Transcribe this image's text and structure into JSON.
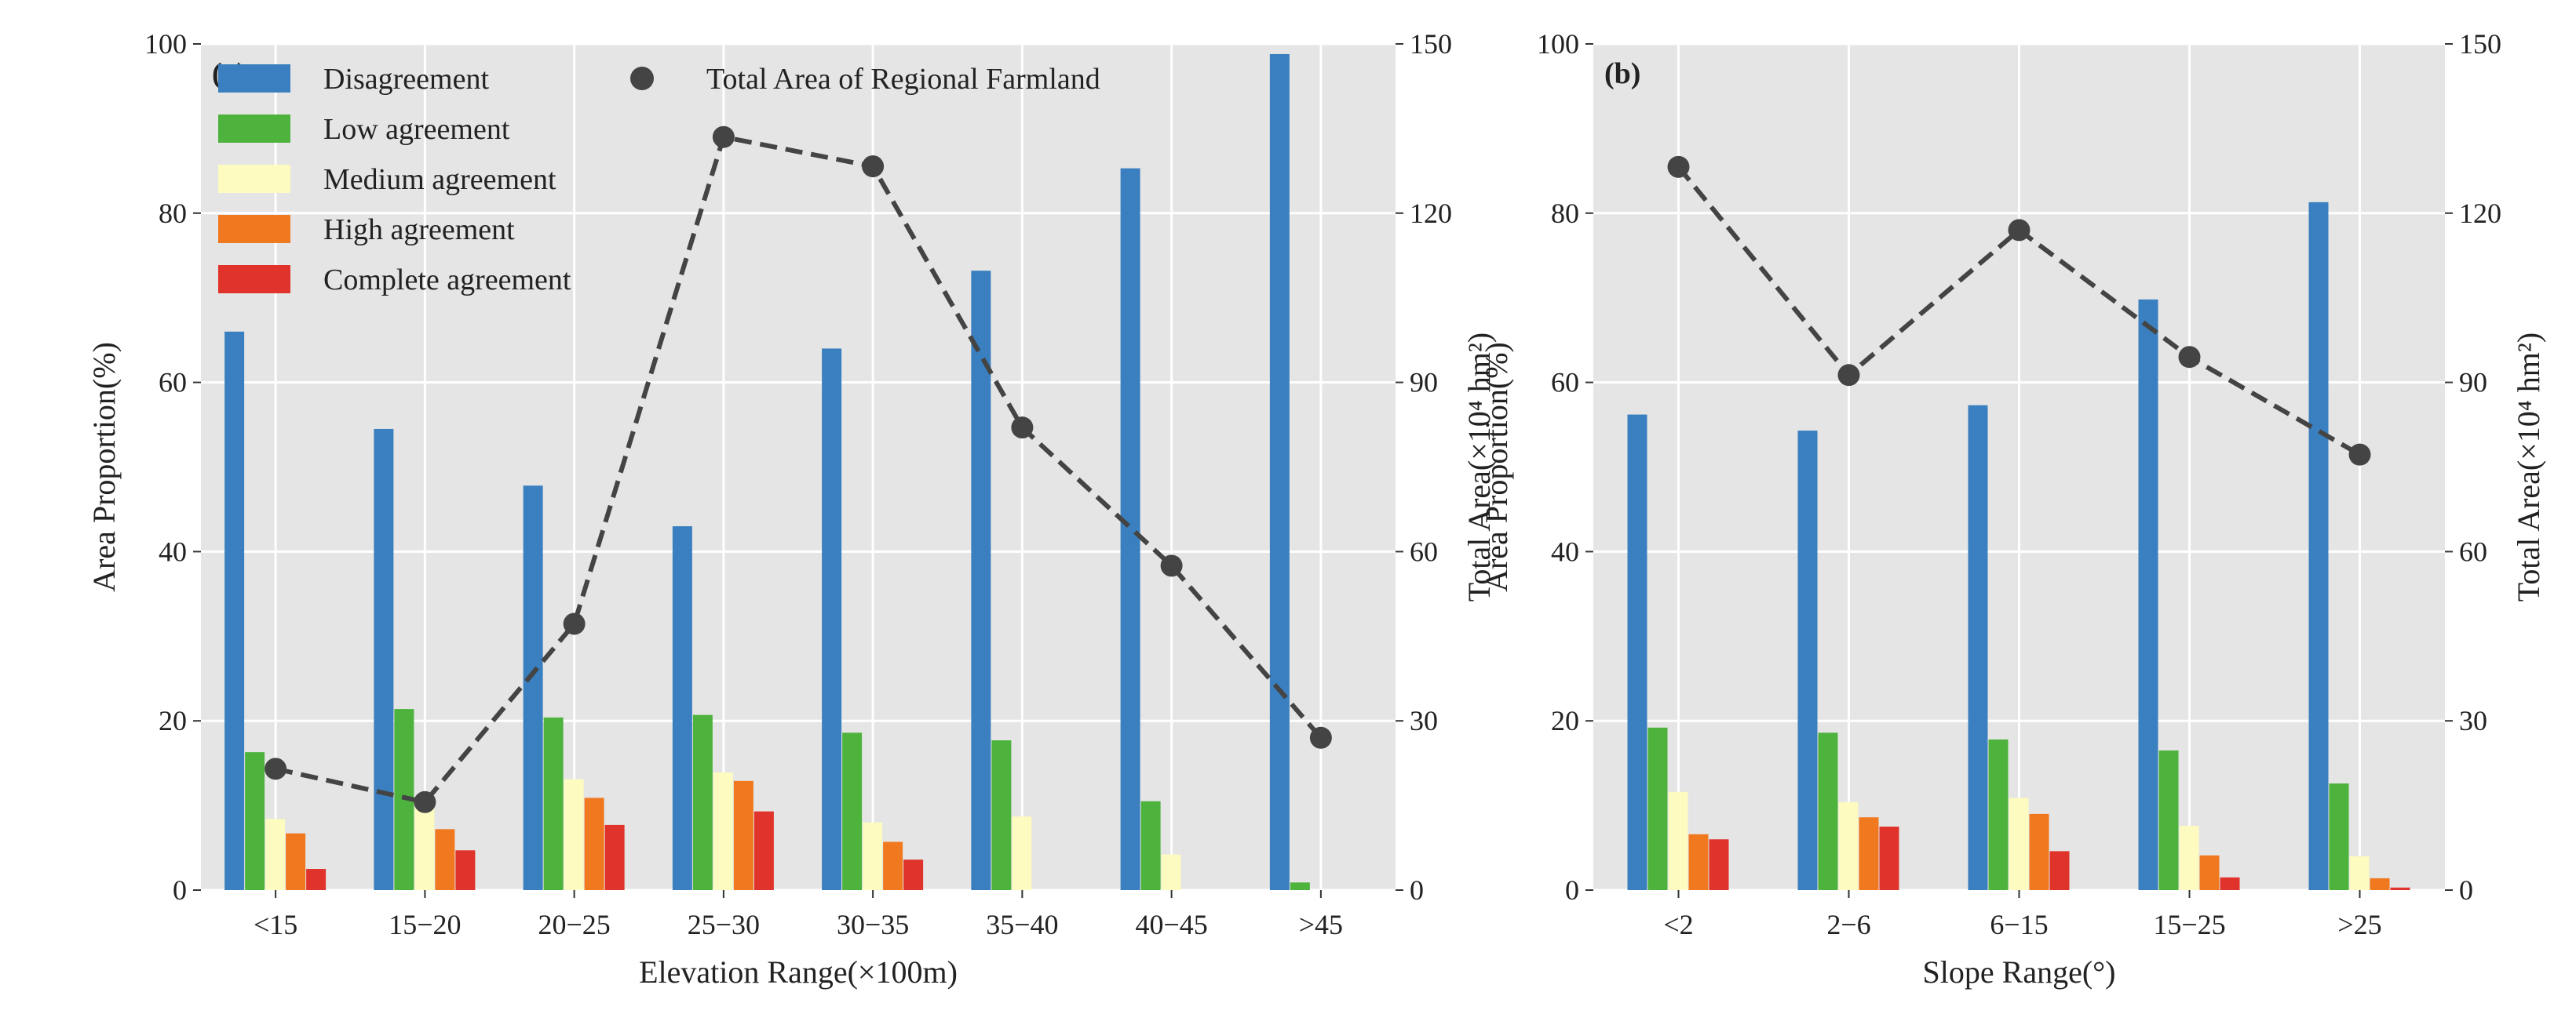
{
  "colors": {
    "disagreement": "#3a7fbf",
    "low": "#4db33d",
    "medium": "#fdfbbf",
    "high": "#f0781f",
    "complete": "#e0332b",
    "line": "#444444",
    "panel_bg": "#e5e5e5",
    "grid": "#ffffff"
  },
  "chart_data": [
    {
      "type": "bar",
      "panel_label": "(a)",
      "xlabel": "Elevation Range(×100m)",
      "ylabel": "Area Proportion(%)",
      "y2label": "Total Area(×10⁴ hm²)",
      "ylim": [
        0,
        100
      ],
      "y2lim": [
        0,
        150
      ],
      "yticks": [
        "0",
        "20",
        "40",
        "60",
        "80",
        "100"
      ],
      "y2ticks": [
        "0",
        "30",
        "60",
        "90",
        "120",
        "150"
      ],
      "categories": [
        "<15",
        "15−20",
        "20−25",
        "25−30",
        "30−35",
        "35−40",
        "40−45",
        ">45"
      ],
      "series": [
        {
          "name": "Disagreement",
          "key": "disagreement",
          "values": [
            66,
            54.5,
            47.8,
            43,
            64,
            73.2,
            85.3,
            98.8
          ]
        },
        {
          "name": "Low agreement",
          "key": "low",
          "values": [
            16.3,
            21.4,
            20.4,
            20.7,
            18.6,
            17.7,
            10.5,
            0.9
          ]
        },
        {
          "name": "Medium agreement",
          "key": "medium",
          "values": [
            8.4,
            9.9,
            13.1,
            13.9,
            8.0,
            8.7,
            4.2,
            0
          ]
        },
        {
          "name": "High agreement",
          "key": "high",
          "values": [
            6.7,
            7.2,
            10.9,
            12.9,
            5.7,
            0,
            0,
            0
          ]
        },
        {
          "name": "Complete agreement",
          "key": "complete",
          "values": [
            2.5,
            4.7,
            7.7,
            9.3,
            3.6,
            0,
            0,
            0
          ]
        }
      ],
      "line": {
        "name": "Total Area of Regional Farmland",
        "values": [
          21.5,
          15.6,
          47.2,
          133.5,
          128.3,
          82,
          57.5,
          27
        ]
      }
    },
    {
      "type": "bar",
      "panel_label": "(b)",
      "xlabel": "Slope Range(°)",
      "ylabel": "Area Proportion(%)",
      "y2label": "Total Area(×10⁴ hm²)",
      "ylim": [
        0,
        100
      ],
      "y2lim": [
        0,
        150
      ],
      "yticks": [
        "0",
        "20",
        "40",
        "60",
        "80",
        "100"
      ],
      "y2ticks": [
        "0",
        "30",
        "60",
        "90",
        "120",
        "150"
      ],
      "categories": [
        "<2",
        "2−6",
        "6−15",
        "15−25",
        ">25"
      ],
      "series": [
        {
          "name": "Disagreement",
          "key": "disagreement",
          "values": [
            56.2,
            54.3,
            57.3,
            69.8,
            81.3
          ]
        },
        {
          "name": "Low agreement",
          "key": "low",
          "values": [
            19.2,
            18.6,
            17.8,
            16.5,
            12.6
          ]
        },
        {
          "name": "Medium agreement",
          "key": "medium",
          "values": [
            11.6,
            10.4,
            10.9,
            7.6,
            4.0
          ]
        },
        {
          "name": "High agreement",
          "key": "high",
          "values": [
            6.6,
            8.6,
            9.0,
            4.1,
            1.4
          ]
        },
        {
          "name": "Complete agreement",
          "key": "complete",
          "values": [
            6.0,
            7.5,
            4.6,
            1.5,
            0.3
          ]
        }
      ],
      "line": {
        "name": "Total Area of Regional Farmland",
        "values": [
          128.2,
          91.3,
          117,
          94.5,
          77.2
        ]
      }
    }
  ]
}
